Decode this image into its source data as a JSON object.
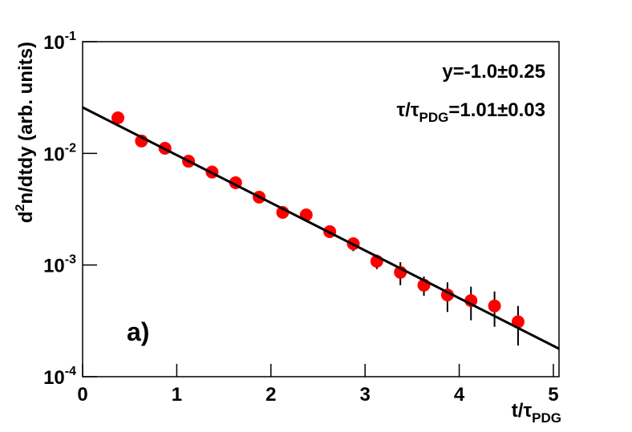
{
  "chart_data": {
    "type": "scatter",
    "xlabel": {
      "main": "t/τ",
      "sub": "PDG"
    },
    "ylabel": {
      "main": "d",
      "sup": "2",
      "rest": "n/dtdy (arb. units)"
    },
    "annotations": [
      {
        "main": "y=-1.0±0.25"
      },
      {
        "main": "τ/τ",
        "sub": "PDG",
        "rest": "=1.01±0.03"
      },
      {
        "main": "a)"
      }
    ],
    "log_y": true,
    "xlim": [
      0,
      5.06
    ],
    "ylim": [
      0.0001,
      0.1
    ],
    "xticks": [
      0,
      1,
      2,
      3,
      4,
      5
    ],
    "yticks": [
      {
        "value": 0.0001,
        "label": "10",
        "exponent": "-4"
      },
      {
        "value": 0.001,
        "label": "10",
        "exponent": "-3"
      },
      {
        "value": 0.01,
        "label": "10",
        "exponent": "-2"
      },
      {
        "value": 0.1,
        "label": "10",
        "exponent": "-1"
      }
    ],
    "series": [
      {
        "color": "#ff0000",
        "x": [
          0.375,
          0.625,
          0.875,
          1.125,
          1.375,
          1.625,
          1.875,
          2.125,
          2.375,
          2.625,
          2.875,
          3.125,
          3.375,
          3.625,
          3.875,
          4.125,
          4.375,
          4.625
        ],
        "values": [
          0.0208,
          0.0129,
          0.0111,
          0.0085,
          0.0068,
          0.00546,
          0.00405,
          0.00296,
          0.00281,
          0.00199,
          0.00155,
          0.00108,
          0.00086,
          0.00066,
          0.00054,
          0.00048,
          0.00043,
          0.00031
        ],
        "errors": [
          0.0006,
          0.0004,
          0.0003,
          0.0002,
          0.00015,
          0.00012,
          0.0001,
          8e-05,
          0.00012,
          0.00024,
          0.00022,
          0.00016,
          0.0002,
          0.00013,
          0.00016,
          0.00016,
          0.00015,
          0.00012
        ]
      },
      {
        "color": "#000000",
        "line": true,
        "x": [
          0,
          5.06
        ],
        "values": [
          0.0258,
          0.000178
        ]
      }
    ]
  }
}
